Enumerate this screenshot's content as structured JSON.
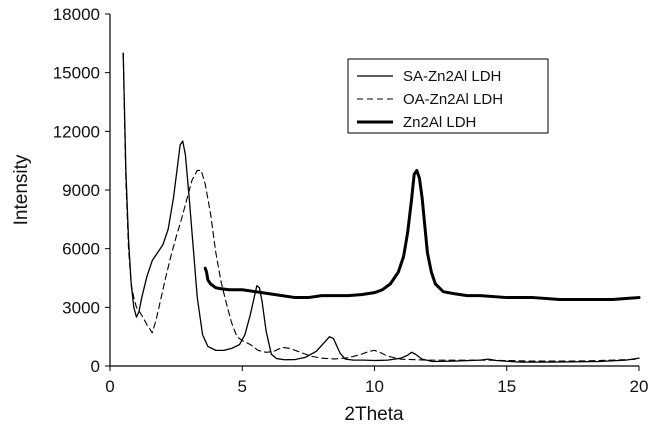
{
  "chart_data": {
    "type": "line",
    "xlabel": "2Theta",
    "ylabel": "Intensity",
    "xlim": [
      0,
      20
    ],
    "ylim": [
      0,
      18000
    ],
    "xticks": [
      0,
      5,
      10,
      15,
      20
    ],
    "yticks": [
      0,
      3000,
      6000,
      9000,
      12000,
      15000,
      18000
    ],
    "grid": false,
    "legend_position": "top-right",
    "series": [
      {
        "name": "SA-Zn2Al LDH",
        "style": "solid-thin",
        "color": "#000000",
        "x": [
          0.5,
          0.55,
          0.6,
          0.7,
          0.8,
          0.9,
          1.0,
          1.1,
          1.2,
          1.4,
          1.6,
          1.8,
          2.0,
          2.2,
          2.4,
          2.55,
          2.65,
          2.75,
          2.85,
          3.0,
          3.15,
          3.3,
          3.5,
          3.7,
          4.0,
          4.3,
          4.6,
          4.9,
          5.1,
          5.3,
          5.45,
          5.55,
          5.65,
          5.75,
          5.9,
          6.1,
          6.3,
          6.6,
          7.0,
          7.4,
          7.8,
          8.1,
          8.3,
          8.45,
          8.55,
          8.7,
          8.9,
          9.2,
          9.6,
          10.0,
          10.5,
          11.0,
          11.25,
          11.4,
          11.55,
          11.8,
          12.2,
          13.0,
          14.0,
          14.3,
          14.6,
          15.5,
          16.5,
          17.5,
          18.5,
          19.5,
          20.0
        ],
        "y": [
          16000,
          13000,
          10000,
          6500,
          4200,
          3000,
          2500,
          2800,
          3500,
          4600,
          5400,
          5800,
          6200,
          7000,
          8600,
          10200,
          11300,
          11500,
          10800,
          8500,
          6000,
          3500,
          1600,
          1000,
          800,
          800,
          900,
          1100,
          1600,
          2600,
          3500,
          4100,
          4000,
          3300,
          1800,
          600,
          380,
          320,
          330,
          450,
          750,
          1200,
          1500,
          1400,
          1100,
          650,
          350,
          300,
          300,
          280,
          300,
          400,
          550,
          700,
          600,
          350,
          230,
          250,
          300,
          350,
          280,
          200,
          200,
          210,
          230,
          300,
          400
        ]
      },
      {
        "name": "OA-Zn2Al LDH",
        "style": "dashed",
        "color": "#000000",
        "x": [
          0.5,
          0.55,
          0.6,
          0.7,
          0.8,
          0.9,
          1.0,
          1.2,
          1.4,
          1.6,
          1.75,
          1.9,
          2.1,
          2.3,
          2.5,
          2.7,
          2.9,
          3.1,
          3.3,
          3.45,
          3.6,
          3.8,
          4.0,
          4.2,
          4.4,
          4.6,
          4.8,
          5.0,
          5.3,
          5.6,
          5.9,
          6.2,
          6.5,
          6.8,
          7.2,
          7.6,
          8.0,
          8.5,
          9.0,
          9.5,
          9.8,
          10.0,
          10.2,
          10.5,
          11.0,
          12.0,
          13.0,
          14.0,
          15.0,
          16.0,
          17.0,
          18.0,
          19.0,
          20.0
        ],
        "y": [
          16000,
          12500,
          9500,
          6000,
          4200,
          3500,
          3000,
          2600,
          2100,
          1700,
          2400,
          3300,
          4500,
          5600,
          6600,
          7500,
          8500,
          9500,
          10000,
          10000,
          9300,
          7800,
          5800,
          4300,
          3200,
          2200,
          1500,
          1300,
          1100,
          800,
          700,
          750,
          950,
          900,
          700,
          500,
          400,
          360,
          420,
          600,
          750,
          800,
          700,
          500,
          350,
          300,
          300,
          300,
          280,
          250,
          250,
          260,
          300,
          350
        ]
      },
      {
        "name": "Zn2Al LDH",
        "style": "solid-thick",
        "color": "#000000",
        "x": [
          3.6,
          3.65,
          3.7,
          3.8,
          3.9,
          4.0,
          4.2,
          4.5,
          5.0,
          5.5,
          6.0,
          6.5,
          7.0,
          7.5,
          8.0,
          8.5,
          9.0,
          9.5,
          10.0,
          10.3,
          10.6,
          10.9,
          11.1,
          11.25,
          11.4,
          11.5,
          11.6,
          11.7,
          11.8,
          11.9,
          12.0,
          12.15,
          12.3,
          12.6,
          13.0,
          13.5,
          14.0,
          15.0,
          16.0,
          17.0,
          18.0,
          19.0,
          19.5,
          20.0
        ],
        "y": [
          5000,
          4800,
          4400,
          4200,
          4100,
          4000,
          3950,
          3900,
          3900,
          3800,
          3700,
          3600,
          3500,
          3500,
          3600,
          3600,
          3600,
          3650,
          3750,
          3900,
          4200,
          4800,
          5600,
          6800,
          8500,
          9800,
          10000,
          9600,
          8600,
          7200,
          5800,
          4800,
          4200,
          3800,
          3700,
          3600,
          3600,
          3500,
          3500,
          3400,
          3400,
          3400,
          3450,
          3500
        ]
      }
    ]
  }
}
